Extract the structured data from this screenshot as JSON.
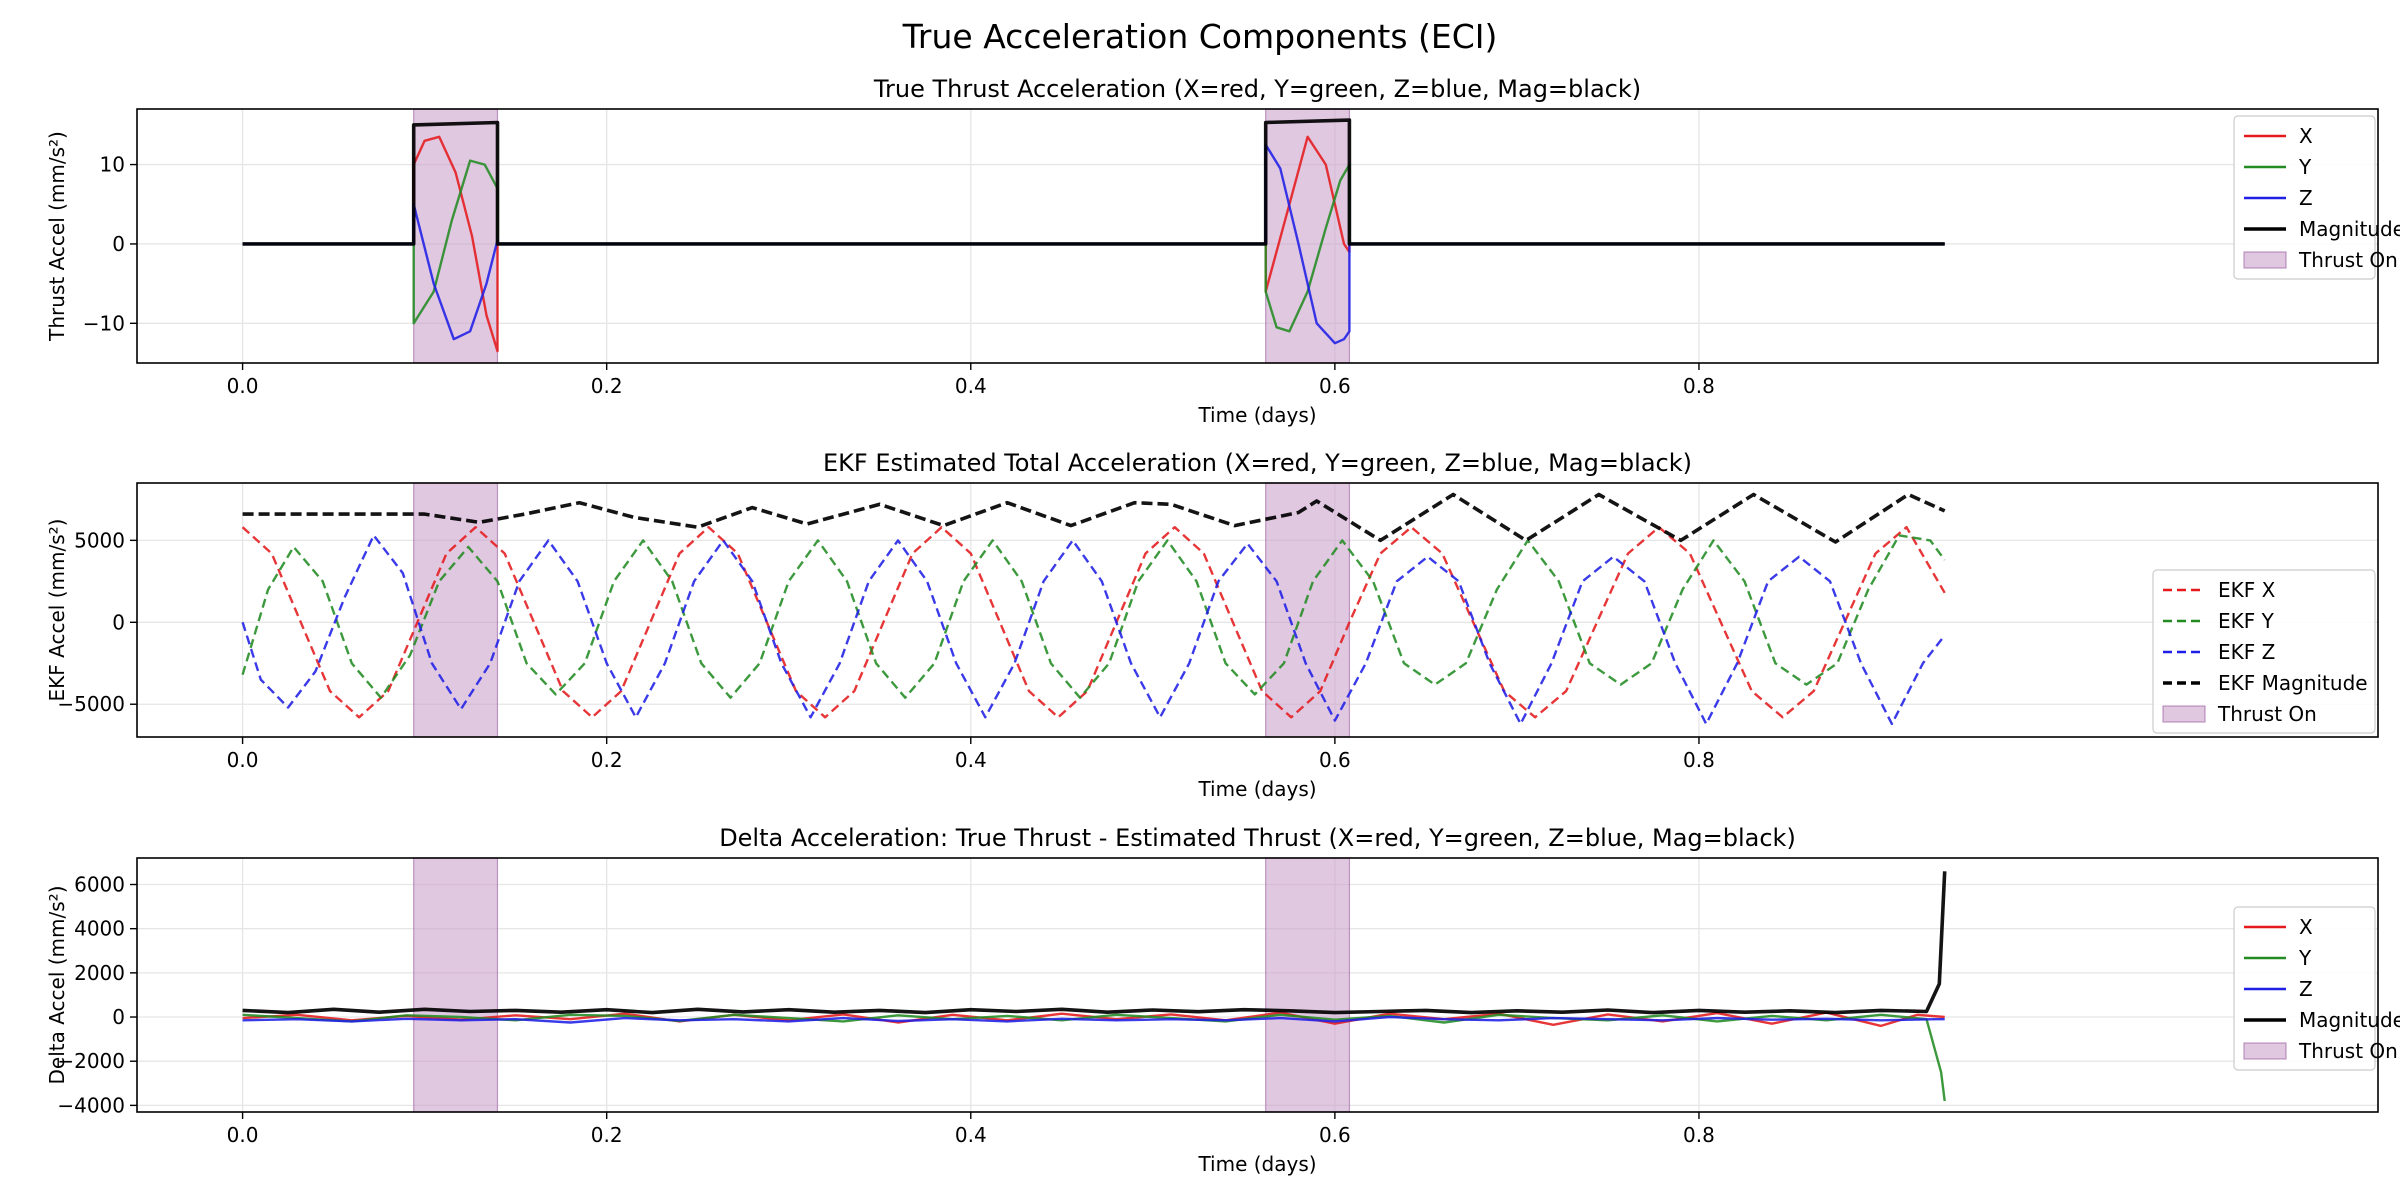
{
  "suptitle": "True Acceleration Components (ECI)",
  "colors": {
    "x": "#e41a1c",
    "y": "#228b22",
    "z": "#1f1fe6",
    "mag": "#000000",
    "thrust_fill": "#c89bc9",
    "grid": "#e6e6e6"
  },
  "chart_data": [
    {
      "type": "line",
      "title": "True Thrust Acceleration (X=red, Y=green, Z=blue, Mag=black)",
      "xlabel": "Time (days)",
      "ylabel": "Thrust Accel (mm/s²)",
      "xlim": [
        -0.058,
        1.173
      ],
      "ylim": [
        -15,
        17
      ],
      "xticks": [
        "0.0",
        "0.2",
        "0.4",
        "0.6",
        "0.8"
      ],
      "yticks": [
        "−10",
        "0",
        "10"
      ],
      "grid": true,
      "legend_position": "upper right",
      "thrust_on": [
        [
          0.094,
          0.14
        ],
        [
          0.562,
          0.608
        ]
      ],
      "series": [
        {
          "name": "X",
          "style": "solid",
          "x": [
            0.0,
            0.094,
            0.094,
            0.1,
            0.108,
            0.117,
            0.126,
            0.134,
            0.14,
            0.14,
            0.562,
            0.562,
            0.575,
            0.585,
            0.595,
            0.605,
            0.608,
            0.608,
            0.935
          ],
          "y": [
            0,
            0,
            10,
            13,
            13.5,
            9,
            1,
            -9,
            -13.5,
            0,
            0,
            -6,
            5,
            13.5,
            10,
            0,
            -1,
            0,
            0
          ]
        },
        {
          "name": "Y",
          "style": "solid",
          "x": [
            0.0,
            0.094,
            0.094,
            0.105,
            0.115,
            0.125,
            0.133,
            0.14,
            0.14,
            0.562,
            0.562,
            0.568,
            0.575,
            0.585,
            0.595,
            0.603,
            0.608,
            0.608,
            0.935
          ],
          "y": [
            0,
            0,
            -10,
            -6,
            3,
            10.5,
            10,
            7,
            0,
            0,
            -6,
            -10.5,
            -11,
            -6,
            2,
            8,
            10,
            0,
            0
          ]
        },
        {
          "name": "Z",
          "style": "solid",
          "x": [
            0.0,
            0.094,
            0.094,
            0.105,
            0.116,
            0.125,
            0.134,
            0.14,
            0.14,
            0.562,
            0.562,
            0.57,
            0.58,
            0.59,
            0.6,
            0.605,
            0.608,
            0.608,
            0.935
          ],
          "y": [
            0,
            0,
            5,
            -5,
            -12,
            -11,
            -5,
            0.5,
            0,
            0,
            12.5,
            9.5,
            0,
            -10,
            -12.5,
            -12,
            -11,
            0,
            0
          ]
        },
        {
          "name": "Magnitude",
          "style": "solid",
          "x": [
            0.0,
            0.094,
            0.094,
            0.14,
            0.14,
            0.562,
            0.562,
            0.608,
            0.608,
            0.935
          ],
          "y": [
            0,
            0,
            15,
            15.3,
            0,
            0,
            15.3,
            15.6,
            0,
            0
          ]
        }
      ],
      "legend": [
        "X",
        "Y",
        "Z",
        "Magnitude",
        "Thrust On"
      ]
    },
    {
      "type": "line",
      "title": "EKF Estimated Total Acceleration (X=red, Y=green, Z=blue, Mag=black)",
      "xlabel": "Time (days)",
      "ylabel": "EKF Accel (mm/s²)",
      "xlim": [
        -0.058,
        1.173
      ],
      "ylim": [
        -7000,
        8500
      ],
      "xticks": [
        "0.0",
        "0.2",
        "0.4",
        "0.6",
        "0.8"
      ],
      "yticks": [
        "−5000",
        "0",
        "5000"
      ],
      "grid": true,
      "legend_position": "center right",
      "thrust_on": [
        [
          0.094,
          0.14
        ],
        [
          0.562,
          0.608
        ]
      ],
      "series": [
        {
          "name": "EKF X",
          "style": "dashed",
          "x": [
            0.0,
            0.016,
            0.032,
            0.048,
            0.064,
            0.08,
            0.096,
            0.112,
            0.128,
            0.144,
            0.16,
            0.176,
            0.192,
            0.208,
            0.224,
            0.24,
            0.256,
            0.272,
            0.288,
            0.304,
            0.32,
            0.336,
            0.352,
            0.368,
            0.384,
            0.4,
            0.416,
            0.432,
            0.448,
            0.464,
            0.48,
            0.496,
            0.512,
            0.528,
            0.544,
            0.56,
            0.576,
            0.592,
            0.608,
            0.625,
            0.642,
            0.659,
            0.676,
            0.693,
            0.71,
            0.727,
            0.744,
            0.761,
            0.778,
            0.795,
            0.812,
            0.829,
            0.846,
            0.863,
            0.88,
            0.897,
            0.914,
            0.935
          ],
          "y": [
            5800,
            4200,
            0,
            -4200,
            -5800,
            -4200,
            0,
            4200,
            5800,
            4200,
            0,
            -4200,
            -5800,
            -4200,
            0,
            4200,
            5800,
            4200,
            0,
            -4200,
            -5800,
            -4200,
            0,
            4200,
            5800,
            4200,
            0,
            -4200,
            -5800,
            -4200,
            0,
            4200,
            5800,
            4200,
            0,
            -4200,
            -5800,
            -4200,
            0,
            4200,
            5800,
            4200,
            0,
            -4200,
            -5800,
            -4200,
            0,
            4200,
            5800,
            4200,
            0,
            -4200,
            -5800,
            -4200,
            0,
            4200,
            5800,
            1800
          ]
        },
        {
          "name": "EKF Y",
          "style": "dashed",
          "x": [
            0.0,
            0.014,
            0.028,
            0.044,
            0.06,
            0.076,
            0.092,
            0.108,
            0.124,
            0.14,
            0.156,
            0.172,
            0.188,
            0.204,
            0.22,
            0.236,
            0.252,
            0.268,
            0.284,
            0.3,
            0.316,
            0.332,
            0.348,
            0.364,
            0.38,
            0.396,
            0.412,
            0.428,
            0.444,
            0.46,
            0.476,
            0.492,
            0.508,
            0.524,
            0.54,
            0.556,
            0.572,
            0.588,
            0.604,
            0.621,
            0.638,
            0.655,
            0.672,
            0.689,
            0.706,
            0.723,
            0.74,
            0.757,
            0.774,
            0.791,
            0.808,
            0.825,
            0.842,
            0.859,
            0.876,
            0.893,
            0.91,
            0.927,
            0.935
          ],
          "y": [
            -3200,
            2000,
            4600,
            2500,
            -2500,
            -4600,
            -2000,
            2500,
            4600,
            2500,
            -2500,
            -4400,
            -2500,
            2500,
            5000,
            2500,
            -2500,
            -4600,
            -2500,
            2500,
            5000,
            2500,
            -2500,
            -4600,
            -2500,
            2500,
            5000,
            2500,
            -2500,
            -4600,
            -2500,
            2500,
            5000,
            2500,
            -2500,
            -4400,
            -2500,
            2500,
            5000,
            2500,
            -2500,
            -3800,
            -2500,
            2000,
            5000,
            2500,
            -2500,
            -3800,
            -2500,
            2000,
            5000,
            2500,
            -2500,
            -3800,
            -2500,
            2000,
            5300,
            5000,
            3800
          ]
        },
        {
          "name": "EKF Z",
          "style": "dashed",
          "x": [
            0.0,
            0.01,
            0.025,
            0.04,
            0.056,
            0.072,
            0.088,
            0.104,
            0.12,
            0.136,
            0.152,
            0.168,
            0.184,
            0.2,
            0.216,
            0.232,
            0.248,
            0.264,
            0.28,
            0.296,
            0.312,
            0.328,
            0.344,
            0.36,
            0.376,
            0.392,
            0.408,
            0.424,
            0.44,
            0.456,
            0.472,
            0.488,
            0.504,
            0.52,
            0.536,
            0.552,
            0.568,
            0.584,
            0.6,
            0.617,
            0.634,
            0.651,
            0.668,
            0.685,
            0.702,
            0.719,
            0.736,
            0.753,
            0.77,
            0.787,
            0.804,
            0.821,
            0.838,
            0.855,
            0.872,
            0.889,
            0.906,
            0.923,
            0.935
          ],
          "y": [
            0,
            -3500,
            -5200,
            -3000,
            1500,
            5300,
            3000,
            -2500,
            -5300,
            -2500,
            2500,
            5000,
            2500,
            -2500,
            -5800,
            -2500,
            2500,
            5000,
            2500,
            -2500,
            -5800,
            -2500,
            2500,
            5000,
            2500,
            -2500,
            -5800,
            -2500,
            2500,
            5000,
            2500,
            -2500,
            -5800,
            -2500,
            2500,
            4800,
            2500,
            -2500,
            -6000,
            -2500,
            2500,
            4000,
            2500,
            -2500,
            -6200,
            -2500,
            2500,
            4000,
            2500,
            -2500,
            -6200,
            -2500,
            2500,
            4000,
            2500,
            -2500,
            -6200,
            -2500,
            -800
          ]
        },
        {
          "name": "EKF Magnitude",
          "style": "dashed",
          "x": [
            0.0,
            0.05,
            0.1,
            0.13,
            0.155,
            0.185,
            0.215,
            0.25,
            0.28,
            0.31,
            0.35,
            0.385,
            0.42,
            0.455,
            0.49,
            0.51,
            0.545,
            0.58,
            0.59,
            0.625,
            0.665,
            0.705,
            0.745,
            0.79,
            0.83,
            0.875,
            0.915,
            0.935
          ],
          "y": [
            6600,
            6600,
            6600,
            6100,
            6600,
            7300,
            6400,
            5800,
            7000,
            6000,
            7200,
            5900,
            7300,
            5900,
            7300,
            7200,
            5900,
            6700,
            7400,
            5000,
            7800,
            5000,
            7800,
            5000,
            7800,
            4900,
            7800,
            6800
          ]
        },
        {
          "name": "Thrust On"
        }
      ],
      "legend": [
        "EKF X",
        "EKF Y",
        "EKF Z",
        "EKF Magnitude",
        "Thrust On"
      ]
    },
    {
      "type": "line",
      "title": "Delta Acceleration: True Thrust - Estimated Thrust (X=red, Y=green, Z=blue, Mag=black)",
      "xlabel": "Time (days)",
      "ylabel": "Delta Accel (mm/s²)",
      "xlim": [
        -0.058,
        1.173
      ],
      "ylim": [
        -4300,
        7200
      ],
      "xticks": [
        "0.0",
        "0.2",
        "0.4",
        "0.6",
        "0.8"
      ],
      "yticks": [
        "−4000",
        "−2000",
        "0",
        "2000",
        "4000",
        "6000"
      ],
      "grid": true,
      "legend_position": "center right",
      "thrust_on": [
        [
          0.094,
          0.14
        ],
        [
          0.562,
          0.608
        ]
      ],
      "series": [
        {
          "name": "X",
          "style": "solid",
          "x": [
            0.0,
            0.03,
            0.06,
            0.09,
            0.12,
            0.15,
            0.18,
            0.21,
            0.24,
            0.27,
            0.3,
            0.33,
            0.36,
            0.39,
            0.42,
            0.45,
            0.48,
            0.51,
            0.54,
            0.57,
            0.6,
            0.63,
            0.66,
            0.69,
            0.72,
            0.75,
            0.78,
            0.81,
            0.84,
            0.87,
            0.9,
            0.92,
            0.935
          ],
          "y": [
            -50,
            100,
            -150,
            50,
            -120,
            80,
            -100,
            150,
            -200,
            100,
            -150,
            120,
            -250,
            100,
            -150,
            150,
            -100,
            120,
            -150,
            200,
            -300,
            150,
            -100,
            150,
            -350,
            120,
            -200,
            180,
            -300,
            200,
            -400,
            100,
            0
          ]
        },
        {
          "name": "Y",
          "style": "solid",
          "x": [
            0.0,
            0.03,
            0.06,
            0.09,
            0.12,
            0.15,
            0.18,
            0.21,
            0.24,
            0.27,
            0.3,
            0.33,
            0.36,
            0.39,
            0.42,
            0.45,
            0.48,
            0.51,
            0.54,
            0.57,
            0.6,
            0.63,
            0.66,
            0.69,
            0.72,
            0.75,
            0.78,
            0.81,
            0.84,
            0.87,
            0.9,
            0.925,
            0.933,
            0.935
          ],
          "y": [
            100,
            -50,
            -200,
            80,
            0,
            -150,
            100,
            50,
            -180,
            100,
            -50,
            -200,
            80,
            -100,
            50,
            -150,
            100,
            -50,
            -200,
            100,
            -120,
            50,
            -250,
            100,
            -50,
            -150,
            80,
            -200,
            50,
            -150,
            100,
            -100,
            -2500,
            -3800
          ]
        },
        {
          "name": "Z",
          "style": "solid",
          "x": [
            0.0,
            0.03,
            0.06,
            0.09,
            0.12,
            0.15,
            0.18,
            0.21,
            0.24,
            0.27,
            0.3,
            0.33,
            0.36,
            0.39,
            0.42,
            0.45,
            0.48,
            0.51,
            0.54,
            0.57,
            0.6,
            0.63,
            0.66,
            0.69,
            0.72,
            0.75,
            0.78,
            0.81,
            0.84,
            0.87,
            0.9,
            0.93,
            0.935
          ],
          "y": [
            -150,
            -100,
            -200,
            -80,
            -150,
            -100,
            -250,
            -50,
            -150,
            -100,
            -200,
            -50,
            -180,
            -100,
            -200,
            -80,
            -150,
            -100,
            -150,
            -50,
            -200,
            0,
            -100,
            -150,
            -50,
            -100,
            -150,
            -50,
            -120,
            -80,
            -150,
            -100,
            -100
          ]
        },
        {
          "name": "Magnitude",
          "style": "solid",
          "x": [
            0.0,
            0.025,
            0.05,
            0.075,
            0.1,
            0.125,
            0.15,
            0.175,
            0.2,
            0.225,
            0.25,
            0.275,
            0.3,
            0.325,
            0.35,
            0.375,
            0.4,
            0.425,
            0.45,
            0.475,
            0.5,
            0.525,
            0.55,
            0.575,
            0.6,
            0.625,
            0.65,
            0.675,
            0.7,
            0.725,
            0.75,
            0.775,
            0.8,
            0.825,
            0.85,
            0.875,
            0.9,
            0.925,
            0.932,
            0.935
          ],
          "y": [
            300,
            200,
            350,
            220,
            350,
            250,
            300,
            220,
            330,
            200,
            350,
            230,
            330,
            220,
            300,
            200,
            330,
            250,
            350,
            220,
            320,
            240,
            330,
            280,
            200,
            250,
            300,
            200,
            280,
            220,
            320,
            200,
            300,
            220,
            280,
            200,
            300,
            250,
            1500,
            6600
          ]
        }
      ],
      "legend": [
        "X",
        "Y",
        "Z",
        "Magnitude",
        "Thrust On"
      ]
    }
  ]
}
